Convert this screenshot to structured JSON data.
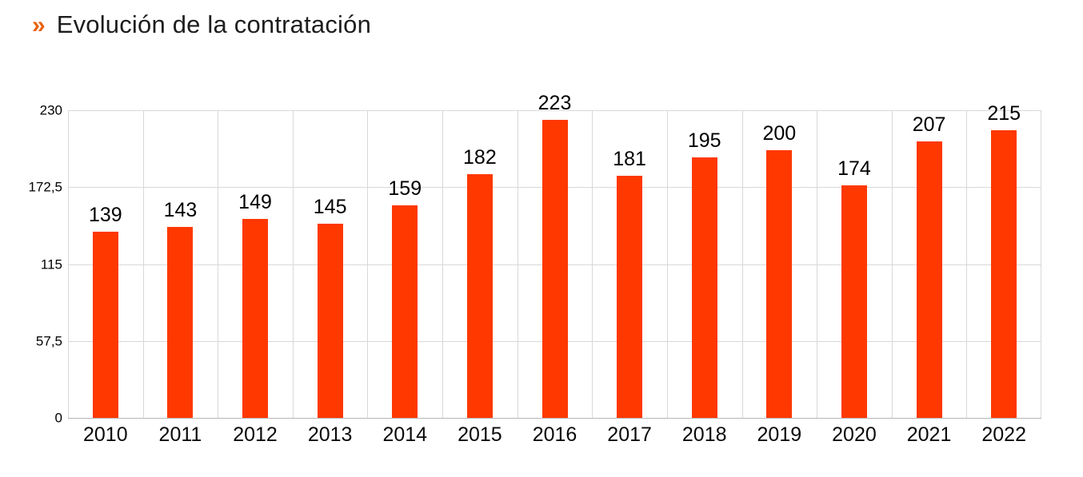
{
  "header": {
    "bullet": "»",
    "title": "Evolución de la contratación"
  },
  "colors": {
    "bar": "#FF3800",
    "bullet": "#E9620E",
    "grid": "#D8D8D8",
    "axis": "#B5B5B5",
    "title_text": "#1D1D1D",
    "label_text": "#000000"
  },
  "chart_data": {
    "type": "bar",
    "title": "Evolución de la contratación",
    "categories": [
      "2010",
      "2011",
      "2012",
      "2013",
      "2014",
      "2015",
      "2016",
      "2017",
      "2018",
      "2019",
      "2020",
      "2021",
      "2022"
    ],
    "values": [
      139,
      143,
      149,
      145,
      159,
      182,
      223,
      181,
      195,
      200,
      174,
      207,
      215
    ],
    "data_labels": [
      "139",
      "143",
      "149",
      "145",
      "159",
      "182",
      "223",
      "181",
      "195",
      "200",
      "174",
      "207",
      "215"
    ],
    "xlabel": "",
    "ylabel": "",
    "ylim": [
      0,
      230
    ],
    "yticks": {
      "values": [
        0,
        57.5,
        115,
        172.5,
        230
      ],
      "labels": [
        "0",
        "57,5",
        "115",
        "172,5",
        "230"
      ]
    },
    "grid": "horizontal ticks + vertical category boundaries",
    "legend": "none",
    "bar_color": "#FF3800"
  }
}
